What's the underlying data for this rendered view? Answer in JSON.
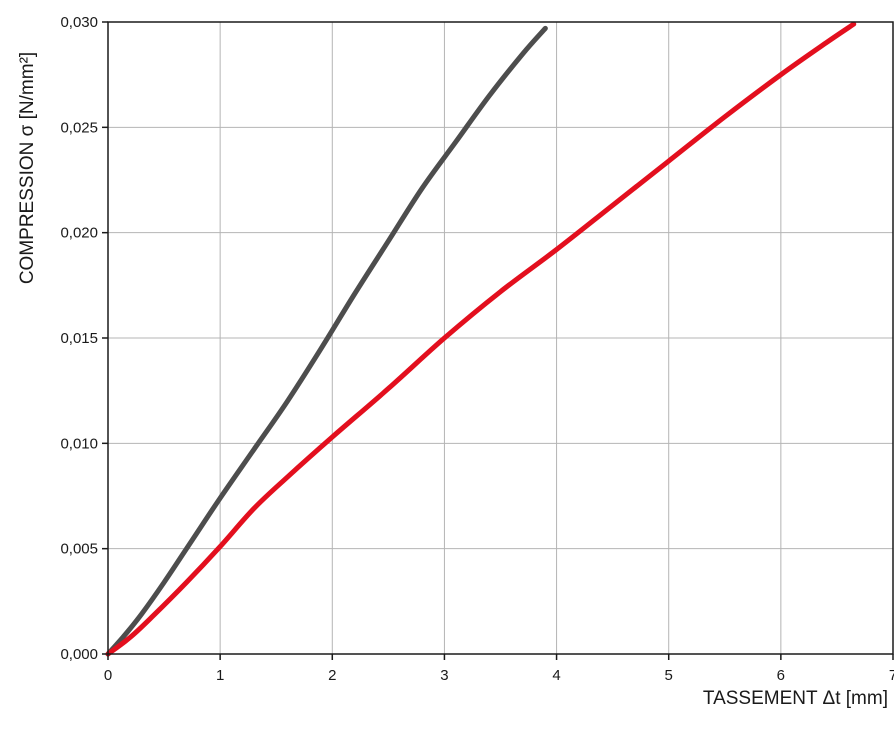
{
  "chart_data": {
    "type": "line",
    "xlabel": "TASSEMENT Δt [mm]",
    "ylabel": "COMPRESSION σ [N/mm²]",
    "xlim": [
      0,
      7
    ],
    "ylim": [
      0,
      0.03
    ],
    "x_ticks": [
      0,
      1,
      2,
      3,
      4,
      5,
      6,
      7
    ],
    "x_tick_labels": [
      "0",
      "1",
      "2",
      "3",
      "4",
      "5",
      "6",
      "7"
    ],
    "y_ticks": [
      0,
      0.005,
      0.01,
      0.015,
      0.02,
      0.025,
      0.03
    ],
    "y_tick_labels": [
      "0,000",
      "0,005",
      "0,010",
      "0,015",
      "0,020",
      "0,025",
      "0,030"
    ],
    "grid": true,
    "legend": "none",
    "series": [
      {
        "color": "#4d4d4d",
        "x": [
          0,
          0.15,
          0.3,
          0.5,
          0.75,
          1.0,
          1.3,
          1.6,
          1.9,
          2.2,
          2.5,
          2.8,
          3.1,
          3.4,
          3.7,
          3.9
        ],
        "y": [
          0,
          0.0009,
          0.0019,
          0.0034,
          0.0054,
          0.0074,
          0.0097,
          0.012,
          0.0145,
          0.0171,
          0.0196,
          0.0221,
          0.0243,
          0.0265,
          0.0285,
          0.0297
        ]
      },
      {
        "color": "#e30f1e",
        "x": [
          0,
          0.2,
          0.4,
          0.7,
          1.0,
          1.3,
          1.6,
          2.0,
          2.5,
          3.0,
          3.5,
          4.0,
          4.5,
          5.0,
          5.5,
          6.0,
          6.4,
          6.65
        ],
        "y": [
          0,
          0.0008,
          0.0018,
          0.0034,
          0.0051,
          0.0069,
          0.0084,
          0.0103,
          0.0126,
          0.015,
          0.0172,
          0.0192,
          0.0213,
          0.0234,
          0.0255,
          0.0275,
          0.029,
          0.0299
        ]
      }
    ]
  }
}
